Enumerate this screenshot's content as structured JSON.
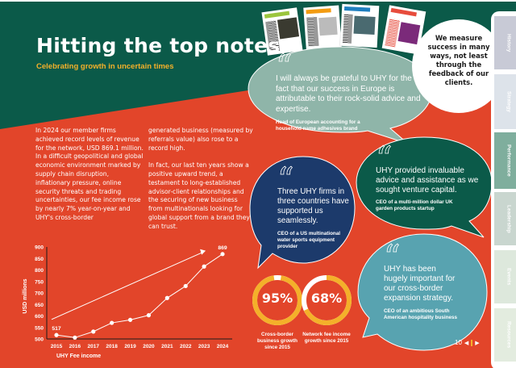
{
  "page": {
    "title": "Hitting the top notes",
    "subtitle": "Celebrating growth in uncertain times",
    "colors": {
      "green": "#0b5a49",
      "red": "#e2452a",
      "yellow": "#f4b02a",
      "sage": "#8fb5a9",
      "navy": "#1c3a6b",
      "teal": "#58a3b0"
    }
  },
  "body": {
    "column1": "In 2024 our member firms achieved record levels of revenue for the network, USD 869.1 million. In a difficult geopolitical and global economic environment marked by supply chain disruption, inflationary pressure, online security threats and trading uncertainties, our fee income rose by nearly 7% year-on-year and UHY's cross-border",
    "column2_p1": "generated business (measured by referrals value) also rose to a record high.",
    "column2_p2": "In fact, our last ten years show a positive upward trend, a testament to long-established advisor-client relationships and the securing of new business from multinationals looking for global support from a brand they can trust."
  },
  "callout": {
    "text": "We measure success in many ways, not least through the feedback of our clients."
  },
  "quotes": [
    {
      "id": "europe",
      "text": "I will always be grateful to UHY for the fact that our success in Europe is attributable to their rock-solid advice and expertise.",
      "attribution": "Head of European accounting for a household name adhesives brand"
    },
    {
      "id": "venture",
      "text": "UHY provided invaluable advice and assistance as we sought venture capital.",
      "attribution": "CEO of a multi-million dollar UK garden products startup"
    },
    {
      "id": "three-firms",
      "text": "Three UHY firms in three countries have supported us seamlessly.",
      "attribution": "CEO of a US multinational water sports equipment provider"
    },
    {
      "id": "expansion",
      "text": "UHY has been hugely important for our cross-border expansion strategy.",
      "attribution": "CEO of an ambitious South American hospitality business"
    }
  ],
  "stats": [
    {
      "value": "95%",
      "label": "Cross-border business growth since 2015",
      "fraction": 0.95
    },
    {
      "value": "68%",
      "label": "Network fee income growth since 2015",
      "fraction": 0.68
    }
  ],
  "tabs": [
    {
      "label": "History",
      "color": "#c8cad6"
    },
    {
      "label": "Strategy",
      "color": "#dde3ea"
    },
    {
      "label": "Performance",
      "color": "#7fae9d"
    },
    {
      "label": "Leadership",
      "color": "#c9d6cf"
    },
    {
      "label": "Events",
      "color": "#dde8dc"
    },
    {
      "label": "Resources",
      "color": "#e3ecdf"
    }
  ],
  "pager": {
    "page_number": "10",
    "prev": "◀",
    "next": "▶"
  },
  "chart_data": {
    "type": "line",
    "title": "UHY Fee income",
    "xlabel": "UHY Fee income",
    "ylabel": "USD millions",
    "categories": [
      "2015",
      "2016",
      "2017",
      "2018",
      "2019",
      "2020",
      "2021",
      "2022",
      "2023",
      "2024"
    ],
    "values": [
      517,
      506,
      532,
      570,
      583,
      603,
      678,
      730,
      815,
      869
    ],
    "annotations": [
      {
        "x": "2015",
        "label": "517"
      },
      {
        "x": "2024",
        "label": "869"
      }
    ],
    "trend_arrow": {
      "from": [
        2015,
        585
      ],
      "to": [
        2023,
        880
      ]
    },
    "ylim": [
      500,
      900
    ],
    "yticks": [
      500,
      550,
      600,
      650,
      700,
      750,
      800,
      850,
      900
    ],
    "grid": false,
    "legend": "none"
  }
}
